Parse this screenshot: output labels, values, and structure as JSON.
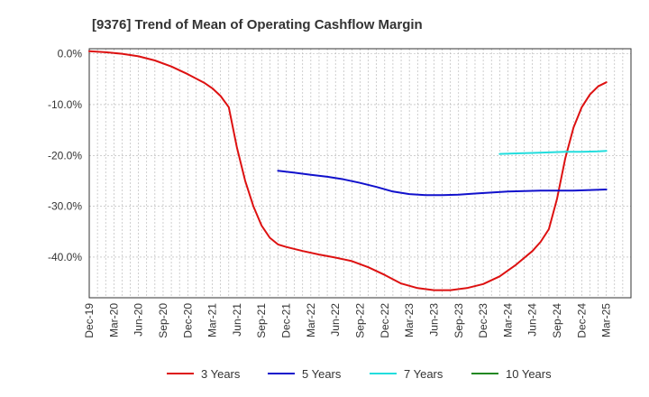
{
  "chart_data": {
    "type": "line",
    "title": "[9376]  Trend of Mean of Operating Cashflow Margin",
    "xlabel": "",
    "ylabel": "",
    "y_tick_labels": [
      "0.0%",
      "-10.0%",
      "-20.0%",
      "-30.0%",
      "-40.0%"
    ],
    "y_tick_values": [
      0,
      -10,
      -20,
      -30,
      -40
    ],
    "ylim": [
      -48,
      1
    ],
    "x_tick_labels": [
      "Dec-19",
      "Mar-20",
      "Jun-20",
      "Sep-20",
      "Dec-20",
      "Mar-21",
      "Jun-21",
      "Sep-21",
      "Dec-21",
      "Mar-22",
      "Jun-22",
      "Sep-22",
      "Dec-22",
      "Mar-23",
      "Jun-23",
      "Sep-23",
      "Dec-23",
      "Mar-24",
      "Jun-24",
      "Sep-24",
      "Dec-24",
      "Mar-25"
    ],
    "x_range_months": [
      0,
      66
    ],
    "grid": true,
    "legend_position": "bottom",
    "series": [
      {
        "name": "3 Years",
        "color": "#dd1111",
        "points": [
          [
            0,
            0.5
          ],
          [
            2,
            0.3
          ],
          [
            4,
            0
          ],
          [
            6,
            -0.5
          ],
          [
            8,
            -1.3
          ],
          [
            10,
            -2.5
          ],
          [
            12,
            -4
          ],
          [
            14,
            -5.7
          ],
          [
            15,
            -6.8
          ],
          [
            16,
            -8.3
          ],
          [
            17,
            -10.5
          ],
          [
            18,
            -18.5
          ],
          [
            19,
            -25
          ],
          [
            20,
            -30
          ],
          [
            21,
            -33.8
          ],
          [
            22,
            -36.2
          ],
          [
            23,
            -37.5
          ],
          [
            24,
            -38
          ],
          [
            26,
            -38.8
          ],
          [
            28,
            -39.5
          ],
          [
            30,
            -40.1
          ],
          [
            32,
            -40.8
          ],
          [
            34,
            -42
          ],
          [
            36,
            -43.5
          ],
          [
            38,
            -45.2
          ],
          [
            40,
            -46.1
          ],
          [
            42,
            -46.5
          ],
          [
            44,
            -46.5
          ],
          [
            46,
            -46.1
          ],
          [
            48,
            -45.3
          ],
          [
            50,
            -43.8
          ],
          [
            52,
            -41.5
          ],
          [
            54,
            -38.8
          ],
          [
            55,
            -37
          ],
          [
            56,
            -34.5
          ],
          [
            57,
            -28.5
          ],
          [
            58,
            -20.5
          ],
          [
            59,
            -14.5
          ],
          [
            60,
            -10.5
          ],
          [
            61,
            -8
          ],
          [
            62,
            -6.4
          ],
          [
            63,
            -5.6
          ]
        ]
      },
      {
        "name": "5 Years",
        "color": "#1111cc",
        "points": [
          [
            23,
            -23
          ],
          [
            25,
            -23.4
          ],
          [
            27,
            -23.8
          ],
          [
            29,
            -24.2
          ],
          [
            31,
            -24.7
          ],
          [
            33,
            -25.4
          ],
          [
            35,
            -26.2
          ],
          [
            37,
            -27.1
          ],
          [
            39,
            -27.6
          ],
          [
            41,
            -27.8
          ],
          [
            43,
            -27.8
          ],
          [
            45,
            -27.7
          ],
          [
            47,
            -27.5
          ],
          [
            49,
            -27.3
          ],
          [
            51,
            -27.1
          ],
          [
            53,
            -27
          ],
          [
            55,
            -26.9
          ],
          [
            57,
            -26.9
          ],
          [
            59,
            -26.9
          ],
          [
            61,
            -26.8
          ],
          [
            63,
            -26.7
          ]
        ]
      },
      {
        "name": "7 Years",
        "color": "#22dddd",
        "points": [
          [
            50,
            -19.7
          ],
          [
            52,
            -19.6
          ],
          [
            54,
            -19.5
          ],
          [
            56,
            -19.4
          ],
          [
            58,
            -19.3
          ],
          [
            60,
            -19.3
          ],
          [
            62,
            -19.2
          ],
          [
            63,
            -19.1
          ]
        ]
      },
      {
        "name": "10 Years",
        "color": "#228822",
        "points": []
      }
    ]
  }
}
